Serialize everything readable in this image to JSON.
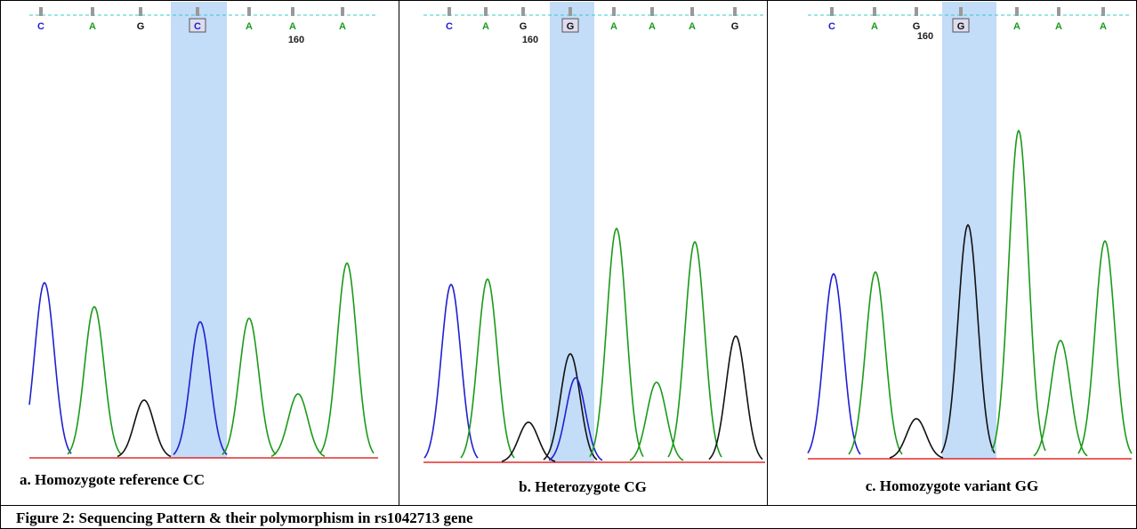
{
  "panels": [
    {
      "bases": [
        "C",
        "A",
        "G",
        "C",
        "A",
        "A",
        "A"
      ],
      "position_label": "160",
      "caption": "a. Homozygote reference CC"
    },
    {
      "bases": [
        "C",
        "A",
        "G",
        "G",
        "A",
        "A",
        "A",
        "G"
      ],
      "position_label": "160",
      "caption": "b. Heterozygote CG"
    },
    {
      "bases": [
        "C",
        "A",
        "G",
        "G",
        "A",
        "A",
        "A"
      ],
      "position_label": "160",
      "caption": "c. Homozygote variant GG"
    }
  ],
  "figure_caption": "Figure 2: Sequencing Pattern & their polymorphism in rs1042713 gene"
}
